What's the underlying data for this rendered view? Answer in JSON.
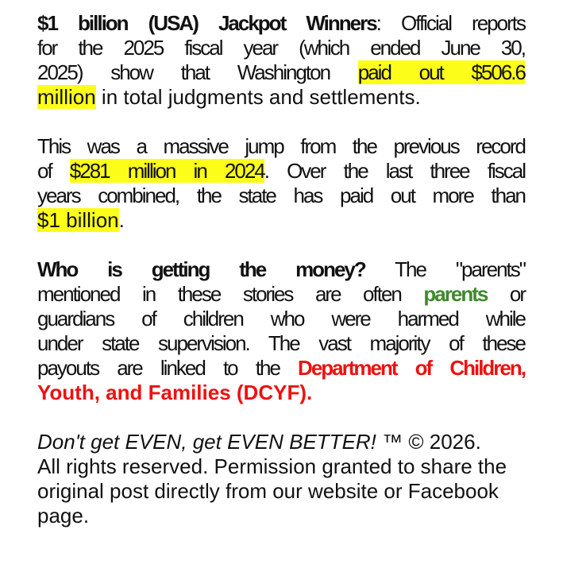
{
  "paragraphs": [
    {
      "justified": true,
      "lines": [
        [
          {
            "t": "$1 billion (USA) Jackpot Winners",
            "s": "b"
          },
          {
            "t": ": Official reports"
          }
        ],
        [
          {
            "t": "for the 2025 fiscal year (which ended June 30,"
          }
        ],
        [
          {
            "t": "2025) show that Washington "
          },
          {
            "t": "paid out $506.6",
            "s": "hl"
          }
        ],
        [
          {
            "t": "million",
            "s": "hl"
          },
          {
            "t": " in total judgments and settlements."
          }
        ]
      ]
    },
    {
      "justified": true,
      "lines": [
        [
          {
            "t": "This was a massive jump from the previous record"
          }
        ],
        [
          {
            "t": "of "
          },
          {
            "t": "$281 million in 2024",
            "s": "hl"
          },
          {
            "t": ". Over the last three fiscal"
          }
        ],
        [
          {
            "t": "years combined, the state has paid out more than"
          }
        ],
        [
          {
            "t": "$1 billion",
            "s": "hl"
          },
          {
            "t": "."
          }
        ]
      ]
    },
    {
      "justified": true,
      "lines": [
        [
          {
            "t": "Who is getting the money?",
            "s": "b"
          },
          {
            "t": " The \"parents\""
          }
        ],
        [
          {
            "t": "mentioned in these stories are often "
          },
          {
            "t": "parents",
            "s": "green"
          },
          {
            "t": " or"
          }
        ],
        [
          {
            "t": "guardians of children who were harmed while"
          }
        ],
        [
          {
            "t": "under state supervision. The vast majority of these"
          }
        ],
        [
          {
            "t": "payouts are linked to the "
          },
          {
            "t": "Department of Children,",
            "s": "red"
          }
        ],
        [
          {
            "t": "Youth, and Families (DCYF).",
            "s": "red"
          }
        ]
      ]
    },
    {
      "justified": false,
      "lines": [
        [
          {
            "t": "Don't get EVEN, get EVEN BETTER!",
            "s": "i"
          },
          {
            "t": " ™ © 2026."
          }
        ],
        [
          {
            "t": "All rights reserved. Permission granted to share the"
          }
        ],
        [
          {
            "t": "original post directly from our website or Facebook"
          }
        ],
        [
          {
            "t": "page."
          }
        ]
      ]
    }
  ],
  "colors": {
    "highlight": "#fdfd1a",
    "green": "#3e8a2c",
    "red": "#ee1111"
  }
}
